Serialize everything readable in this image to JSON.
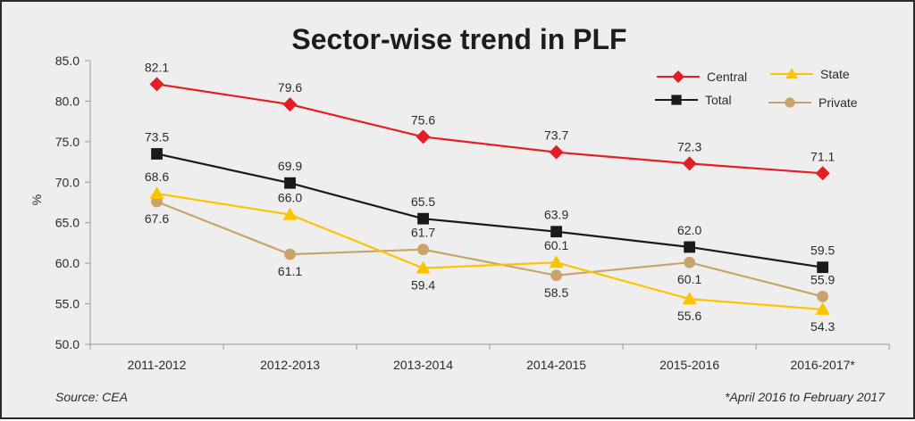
{
  "chart_data": {
    "type": "line",
    "title": "Sector-wise trend in PLF",
    "xlabel": "",
    "ylabel": "%",
    "categories": [
      "2011-2012",
      "2012-2013",
      "2013-2014",
      "2014-2015",
      "2015-2016",
      "2016-2017*"
    ],
    "ylim": [
      50.0,
      85.0
    ],
    "yticks": [
      "50.0",
      "55.0",
      "60.0",
      "65.0",
      "70.0",
      "75.0",
      "80.0",
      "85.0"
    ],
    "grid": false,
    "legend_position": "top-right",
    "series": [
      {
        "name": "Central",
        "color": "#e31e24",
        "marker": "diamond",
        "values": [
          82.1,
          79.6,
          75.6,
          73.7,
          72.3,
          71.1
        ],
        "label_position": [
          "above",
          "above",
          "above",
          "above",
          "above",
          "above"
        ]
      },
      {
        "name": "Total",
        "color": "#1a1a1a",
        "marker": "square",
        "values": [
          73.5,
          69.9,
          65.5,
          63.9,
          62.0,
          59.5
        ],
        "label_position": [
          "above",
          "above",
          "above",
          "above",
          "above",
          "above"
        ]
      },
      {
        "name": "State",
        "color": "#fcc400",
        "marker": "triangle",
        "values": [
          68.6,
          66.0,
          59.4,
          60.1,
          55.6,
          54.3
        ],
        "label_position": [
          "above",
          "above",
          "below",
          "above",
          "below",
          "below"
        ]
      },
      {
        "name": "Private",
        "color": "#c9a46a",
        "marker": "circle",
        "values": [
          67.6,
          61.1,
          61.7,
          58.5,
          60.1,
          55.9
        ],
        "label_position": [
          "below",
          "below",
          "above",
          "below",
          "below",
          "above"
        ]
      }
    ],
    "source": "Source: CEA",
    "footnote": "*April 2016 to February 2017"
  }
}
